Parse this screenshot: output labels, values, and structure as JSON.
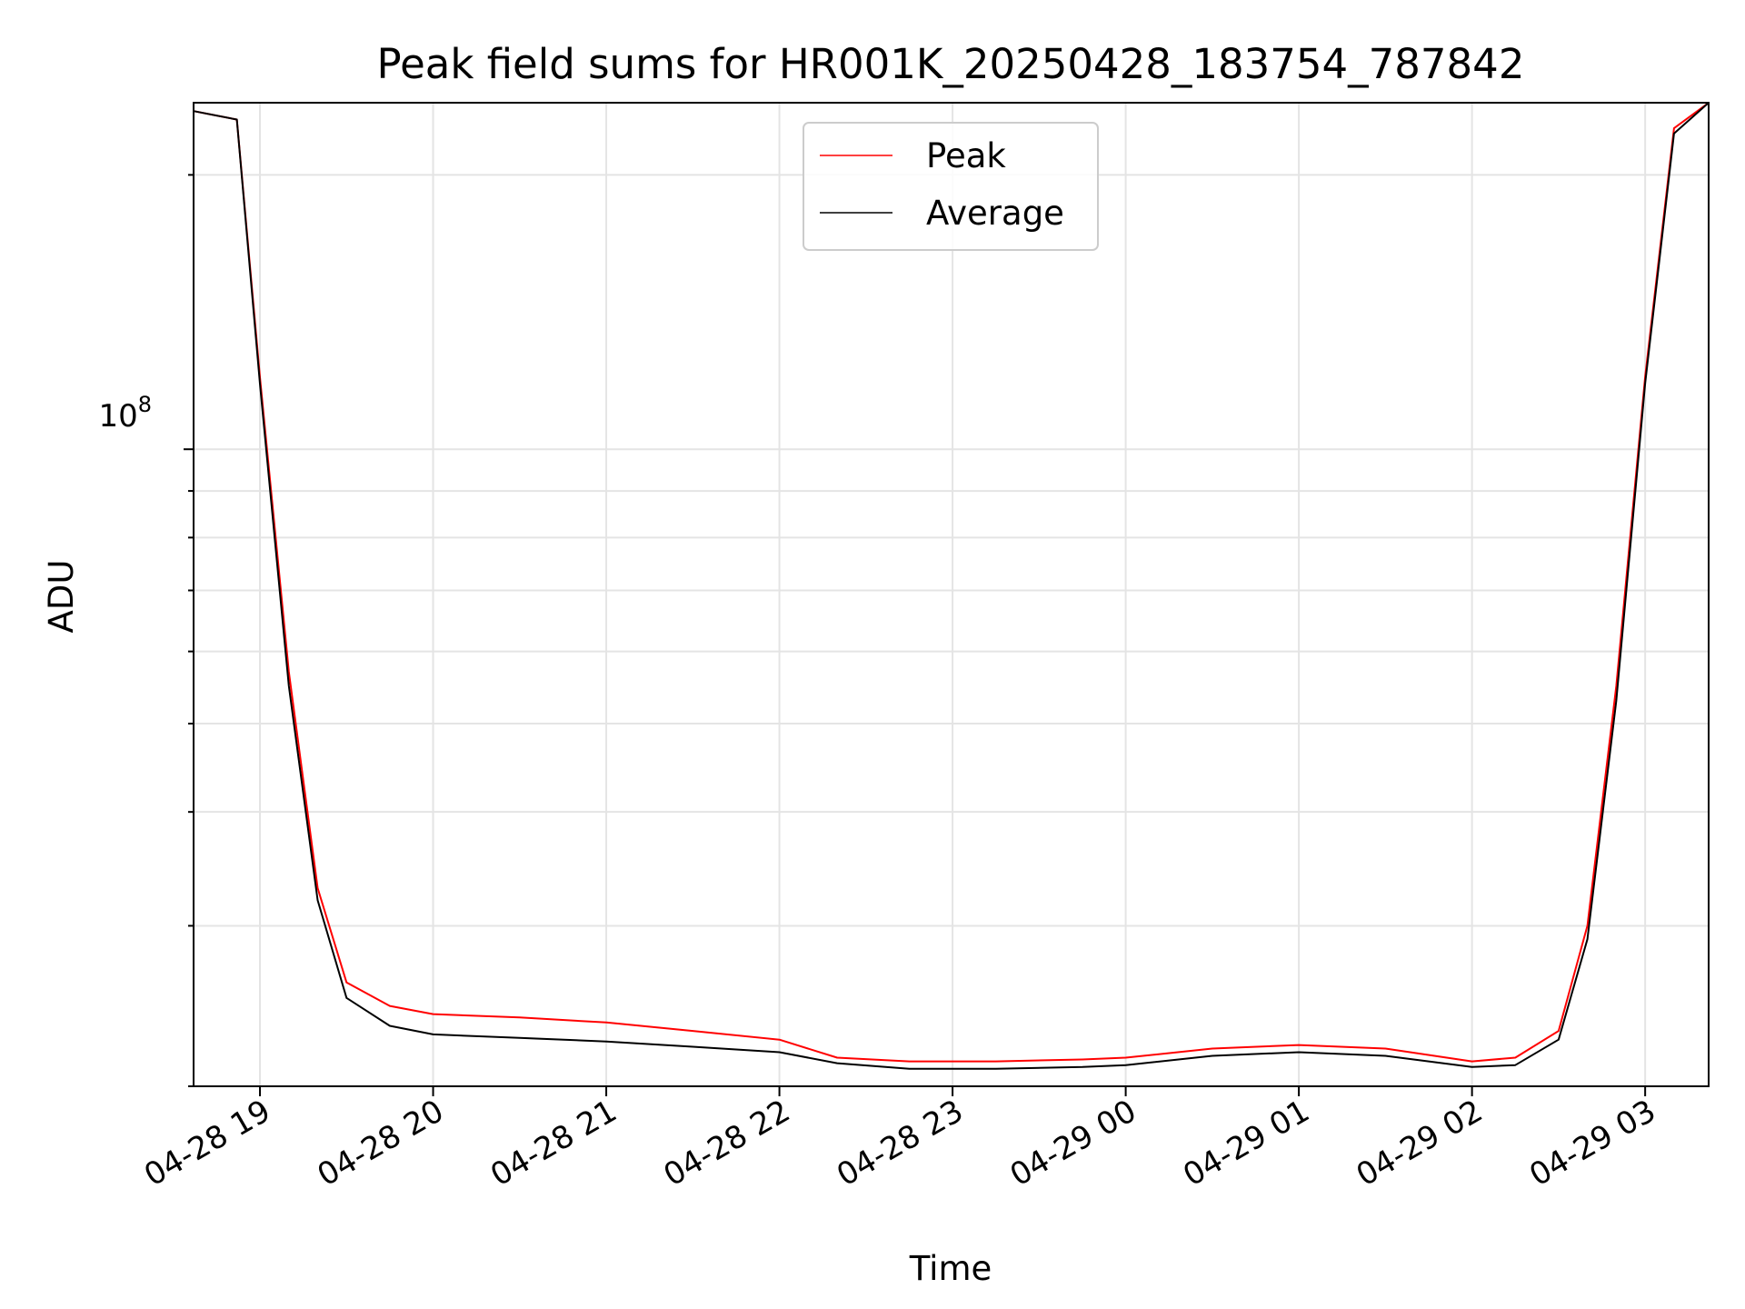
{
  "chart_data": {
    "type": "line",
    "title": "Peak field sums for HR001K_20250428_183754_787842",
    "xlabel": "Time",
    "ylabel": "ADU",
    "y_scale": "log",
    "ylim": [
      20000000,
      240000000
    ],
    "xlim": [
      "2025-04-28 18:37",
      "2025-04-29 03:22"
    ],
    "x_ticks": [
      "04-28 19",
      "04-28 20",
      "04-28 21",
      "04-28 22",
      "04-28 23",
      "04-29 00",
      "04-29 01",
      "04-29 02",
      "04-29 03"
    ],
    "y_ticks": [
      {
        "label_base": "10",
        "label_exp": "8",
        "value": 100000000
      }
    ],
    "grid": true,
    "legend": {
      "position": "top-center",
      "entries": [
        "Peak",
        "Average"
      ]
    },
    "x": [
      "2025-04-28 18:37",
      "2025-04-28 18:52",
      "2025-04-28 19:00",
      "2025-04-28 19:10",
      "2025-04-28 19:20",
      "2025-04-28 19:30",
      "2025-04-28 19:45",
      "2025-04-28 20:00",
      "2025-04-28 20:30",
      "2025-04-28 21:00",
      "2025-04-28 21:30",
      "2025-04-28 22:00",
      "2025-04-28 22:20",
      "2025-04-28 22:45",
      "2025-04-28 23:15",
      "2025-04-28 23:45",
      "2025-04-29 00:00",
      "2025-04-29 00:30",
      "2025-04-29 01:00",
      "2025-04-29 01:30",
      "2025-04-29 02:00",
      "2025-04-29 02:15",
      "2025-04-29 02:30",
      "2025-04-29 02:40",
      "2025-04-29 02:50",
      "2025-04-29 03:00",
      "2025-04-29 03:10",
      "2025-04-29 03:22"
    ],
    "series": [
      {
        "name": "Peak",
        "color": "#ff0000",
        "values": [
          235000000,
          230000000,
          120000000,
          57000000,
          33000000,
          26000000,
          24500000,
          24000000,
          23800000,
          23500000,
          23000000,
          22500000,
          21500000,
          21300000,
          21300000,
          21400000,
          21500000,
          22000000,
          22200000,
          22000000,
          21300000,
          21500000,
          23000000,
          30000000,
          55000000,
          120000000,
          225000000,
          240000000
        ]
      },
      {
        "name": "Average",
        "color": "#000000",
        "values": [
          235000000,
          230000000,
          118000000,
          55000000,
          32000000,
          25000000,
          23300000,
          22800000,
          22600000,
          22400000,
          22100000,
          21800000,
          21200000,
          20900000,
          20900000,
          21000000,
          21100000,
          21600000,
          21800000,
          21600000,
          21000000,
          21100000,
          22500000,
          29000000,
          53000000,
          118000000,
          222000000,
          240000000
        ]
      }
    ]
  }
}
